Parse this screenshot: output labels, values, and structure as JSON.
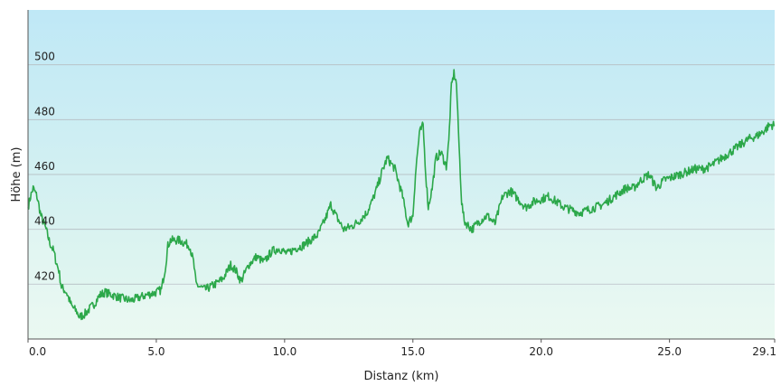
{
  "chart_data": {
    "type": "area",
    "title": "",
    "xlabel": "Distanz  (km)",
    "ylabel": "Höhe (m)",
    "xlim": [
      0,
      29.1
    ],
    "ylim": [
      400,
      520
    ],
    "grid": "horizontal",
    "legend": "none",
    "x_ticks": [
      {
        "value": 0,
        "label": "0.0"
      },
      {
        "value": 5,
        "label": "5.0"
      },
      {
        "value": 10,
        "label": "10.0"
      },
      {
        "value": 15,
        "label": "15.0"
      },
      {
        "value": 20,
        "label": "20.0"
      },
      {
        "value": 25,
        "label": "25.0"
      },
      {
        "value": 29.1,
        "label": "29.1"
      }
    ],
    "y_ticks": [
      {
        "value": 420,
        "label": "420"
      },
      {
        "value": 440,
        "label": "440"
      },
      {
        "value": 460,
        "label": "460"
      },
      {
        "value": 480,
        "label": "480"
      },
      {
        "value": 500,
        "label": "500"
      }
    ],
    "colors": {
      "line": "#2ca84a",
      "fill_top": "#bfe8f6",
      "fill_bottom": "#e6f8ee",
      "grid": "#b9c3c8",
      "axis": "#555555"
    },
    "series": [
      {
        "x": [
          0,
          0.1,
          0.2,
          0.35,
          0.5,
          0.7,
          0.85,
          1.0,
          1.1,
          1.2,
          1.3,
          1.5,
          1.7,
          1.9,
          2.0,
          2.2,
          2.4,
          2.6,
          2.8,
          3.0,
          3.3,
          3.6,
          4.0,
          4.3,
          4.6,
          5.0,
          5.2,
          5.35,
          5.45,
          5.55,
          5.7,
          5.9,
          6.1,
          6.3,
          6.45,
          6.55,
          6.7,
          6.9,
          7.1,
          7.3,
          7.6,
          7.9,
          8.1,
          8.3,
          8.6,
          8.9,
          9.2,
          9.5,
          9.8,
          10.1,
          10.4,
          10.7,
          11.0,
          11.3,
          11.6,
          11.8,
          12.0,
          12.3,
          12.6,
          12.9,
          13.2,
          13.4,
          13.6,
          13.8,
          14.0,
          14.3,
          14.6,
          14.8,
          15.0,
          15.1,
          15.25,
          15.4,
          15.5,
          15.6,
          15.75,
          15.9,
          16.1,
          16.3,
          16.4,
          16.5,
          16.6,
          16.7,
          16.8,
          16.9,
          17.0,
          17.3,
          17.6,
          17.9,
          18.2,
          18.5,
          18.8,
          19.1,
          19.4,
          19.7,
          20.0,
          20.3,
          20.6,
          20.9,
          21.2,
          21.5,
          21.8,
          22.1,
          22.4,
          22.7,
          23.0,
          23.3,
          23.6,
          23.9,
          24.2,
          24.5,
          24.8,
          25.1,
          25.4,
          25.7,
          26.0,
          26.3,
          26.6,
          26.9,
          27.2,
          27.5,
          27.8,
          28.1,
          28.4,
          28.7,
          28.9,
          29.1
        ],
        "y": [
          448,
          452,
          455,
          452,
          445,
          440,
          435,
          432,
          428,
          425,
          419,
          417,
          412,
          410,
          408,
          409,
          411,
          413,
          416,
          417,
          416,
          415,
          414,
          415,
          416,
          417,
          418,
          426,
          434,
          436,
          436,
          436,
          435,
          434,
          428,
          420,
          419,
          418,
          419,
          420,
          422,
          427,
          425,
          421,
          427,
          430,
          428,
          432,
          433,
          431,
          433,
          434,
          436,
          438,
          444,
          449,
          445,
          440,
          441,
          443,
          446,
          450,
          455,
          461,
          466,
          462,
          452,
          442,
          445,
          460,
          475,
          478,
          460,
          448,
          455,
          466,
          468,
          463,
          472,
          492,
          497,
          493,
          470,
          450,
          443,
          440,
          443,
          445,
          442,
          452,
          454,
          451,
          448,
          450,
          451,
          452,
          450,
          448,
          447,
          446,
          447,
          448,
          449,
          451,
          453,
          455,
          455,
          458,
          460,
          455,
          458,
          459,
          460,
          461,
          462,
          462,
          463,
          465,
          467,
          469,
          471,
          473,
          474,
          476,
          478,
          478
        ]
      }
    ]
  }
}
